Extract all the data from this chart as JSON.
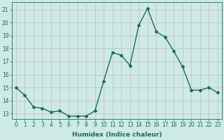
{
  "x": [
    0,
    1,
    2,
    3,
    4,
    5,
    6,
    7,
    8,
    9,
    10,
    11,
    12,
    13,
    14,
    15,
    16,
    17,
    18,
    19,
    20,
    21,
    22,
    23
  ],
  "y": [
    15.0,
    14.4,
    13.5,
    13.4,
    13.1,
    13.2,
    12.8,
    12.8,
    12.8,
    13.2,
    15.5,
    17.7,
    17.5,
    16.7,
    19.8,
    21.1,
    19.3,
    18.9,
    17.8,
    16.6,
    14.8,
    14.8,
    15.0,
    14.6
  ],
  "line_color": "#1a6b5a",
  "marker": "D",
  "marker_size": 2.0,
  "bg_color": "#ceeae6",
  "grid_color_h": "#c8b8b8",
  "grid_color_v": "#c8b8b8",
  "xlabel": "Humidex (Indice chaleur)",
  "ylabel_ticks": [
    13,
    14,
    15,
    16,
    17,
    18,
    19,
    20,
    21
  ],
  "xlim": [
    -0.5,
    23.5
  ],
  "ylim": [
    12.6,
    21.6
  ],
  "xlabel_fontsize": 6.5,
  "tick_fontsize": 5.5,
  "line_width": 1.0,
  "xticks": [
    0,
    1,
    2,
    3,
    4,
    5,
    6,
    7,
    8,
    9,
    10,
    11,
    12,
    13,
    14,
    15,
    16,
    17,
    18,
    19,
    20,
    21,
    22,
    23
  ]
}
